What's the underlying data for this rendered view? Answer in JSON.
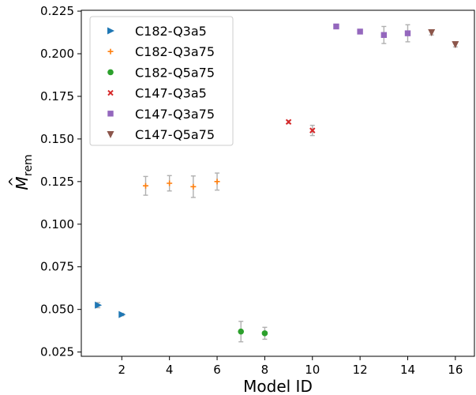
{
  "chart_data": {
    "type": "scatter",
    "title": "",
    "xlabel": "Model ID",
    "ylabel_main": "M",
    "ylabel_sub": "rem",
    "ylabel_hat": "^",
    "xlim": [
      0.3,
      16.8
    ],
    "ylim": [
      0.0225,
      0.2255
    ],
    "xticks": [
      2,
      4,
      6,
      8,
      10,
      12,
      14,
      16
    ],
    "xtick_labels": [
      "2",
      "4",
      "6",
      "8",
      "10",
      "12",
      "14",
      "16"
    ],
    "yticks": [
      0.025,
      0.05,
      0.075,
      0.1,
      0.125,
      0.15,
      0.175,
      0.2,
      0.225
    ],
    "ytick_labels": [
      "0.025",
      "0.050",
      "0.075",
      "0.100",
      "0.125",
      "0.150",
      "0.175",
      "0.200",
      "0.225"
    ],
    "grid": false,
    "legend_position": "top-left",
    "errorbar_color": "#b0b0b0",
    "series": [
      {
        "name": "C182-Q3a5",
        "marker": "triangle-right",
        "color": "#1f77b4",
        "points": [
          {
            "x": 1,
            "y": 0.0525,
            "err": 0.0015
          },
          {
            "x": 2,
            "y": 0.047,
            "err": 0.0007
          }
        ]
      },
      {
        "name": "C182-Q3a75",
        "marker": "plus",
        "color": "#ff7f0e",
        "points": [
          {
            "x": 3,
            "y": 0.1225,
            "err": 0.0055
          },
          {
            "x": 4,
            "y": 0.124,
            "err": 0.0045
          },
          {
            "x": 5,
            "y": 0.122,
            "err": 0.0063
          },
          {
            "x": 6,
            "y": 0.125,
            "err": 0.005
          }
        ]
      },
      {
        "name": "C182-Q5a75",
        "marker": "circle",
        "color": "#2ca02c",
        "points": [
          {
            "x": 7,
            "y": 0.037,
            "err": 0.006
          },
          {
            "x": 8,
            "y": 0.036,
            "err": 0.0035
          }
        ]
      },
      {
        "name": "C147-Q3a5",
        "marker": "x",
        "color": "#d62728",
        "points": [
          {
            "x": 9,
            "y": 0.16,
            "err": 0.0008
          },
          {
            "x": 10,
            "y": 0.155,
            "err": 0.003
          }
        ]
      },
      {
        "name": "C147-Q3a75",
        "marker": "square",
        "color": "#9467bd",
        "points": [
          {
            "x": 11,
            "y": 0.216,
            "err": 0.0008
          },
          {
            "x": 12,
            "y": 0.213,
            "err": 0.0008
          },
          {
            "x": 13,
            "y": 0.211,
            "err": 0.005
          },
          {
            "x": 14,
            "y": 0.212,
            "err": 0.005
          }
        ]
      },
      {
        "name": "C147-Q5a75",
        "marker": "triangle-down",
        "color": "#8c564b",
        "points": [
          {
            "x": 15,
            "y": 0.2125,
            "err": 0.0015
          },
          {
            "x": 16,
            "y": 0.2055,
            "err": 0.0015
          }
        ]
      }
    ]
  }
}
